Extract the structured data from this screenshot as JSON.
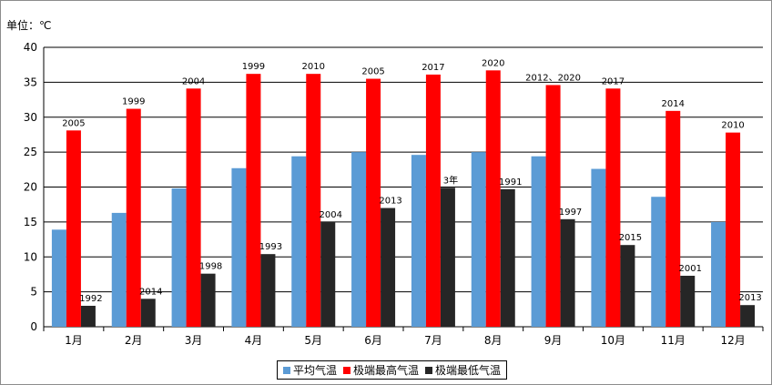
{
  "unit_label": "单位：℃",
  "chart_data": {
    "type": "bar",
    "title": "",
    "xlabel": "",
    "ylabel": "单位：℃",
    "ylim": [
      0,
      40
    ],
    "yticks": [
      0,
      5,
      10,
      15,
      20,
      25,
      30,
      35,
      40
    ],
    "grid": "horizontal",
    "legend_position": "bottom",
    "categories": [
      "1月",
      "2月",
      "3月",
      "4月",
      "5月",
      "6月",
      "7月",
      "8月",
      "9月",
      "10月",
      "11月",
      "12月"
    ],
    "series": [
      {
        "name": "平均气温",
        "color": "#5b9bd5",
        "values": [
          13.9,
          16.3,
          19.8,
          22.7,
          24.4,
          25.0,
          24.6,
          25.0,
          24.4,
          22.6,
          18.6,
          15.0
        ]
      },
      {
        "name": "极端最高气温",
        "color": "#ff0000",
        "values": [
          28.1,
          31.2,
          34.1,
          36.2,
          36.2,
          35.5,
          36.1,
          36.7,
          34.6,
          34.1,
          30.9,
          27.8
        ],
        "labels": [
          "2005",
          "1999",
          "2004",
          "1999",
          "2010",
          "2005",
          "2017",
          "2020",
          "2012、2020",
          "2017",
          "2014",
          "2010"
        ]
      },
      {
        "name": "极端最低气温",
        "color": "#262626",
        "values": [
          3.0,
          4.0,
          7.6,
          10.4,
          15.0,
          17.0,
          19.9,
          19.7,
          15.4,
          11.7,
          7.3,
          3.1
        ],
        "labels": [
          "1992",
          "2014",
          "1998",
          "1993",
          "2004",
          "2013",
          "3年",
          "1991",
          "1997",
          "2015",
          "2001",
          "2013"
        ]
      }
    ]
  }
}
